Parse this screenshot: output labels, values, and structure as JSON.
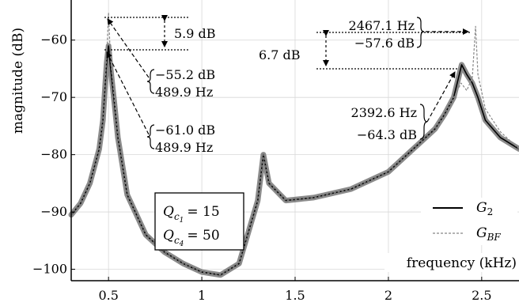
{
  "chart_data": {
    "type": "line",
    "xlabel": "frequency (kHz)",
    "ylabel": "magnitude (dB)",
    "xlim": [
      0.3,
      2.7
    ],
    "ylim": [
      -102,
      -53
    ],
    "x_ticks": [
      0.5,
      1,
      1.5,
      2,
      2.5
    ],
    "x_tick_labels": [
      "0.5",
      "1",
      "1.5",
      "2",
      "2.5"
    ],
    "y_ticks": [
      -60,
      -70,
      -80,
      -90,
      -100
    ],
    "y_tick_labels": [
      "−60",
      "−70",
      "−80",
      "−90",
      "−100"
    ],
    "grid": true,
    "legend_position": "bottom-right",
    "series": [
      {
        "name": "G_BF",
        "legend_main": "G",
        "legend_sub": "BF",
        "color": "#888888",
        "dashed": true,
        "x": [
          0.3,
          0.35,
          0.4,
          0.45,
          0.47,
          0.48,
          0.49,
          0.5,
          0.51,
          0.53,
          0.55,
          0.6,
          0.7,
          0.8,
          0.9,
          1.0,
          1.1,
          1.2,
          1.3,
          1.33,
          1.36,
          1.45,
          1.6,
          1.8,
          2.0,
          2.1,
          2.2,
          2.25,
          2.3,
          2.35,
          2.39,
          2.42,
          2.45,
          2.4671,
          2.48,
          2.52,
          2.6,
          2.7
        ],
        "y": [
          -90.5,
          -88.5,
          -85,
          -79,
          -74,
          -69,
          -63,
          -55.2,
          -63,
          -70,
          -77,
          -87,
          -94,
          -97,
          -99,
          -100.5,
          -101,
          -99,
          -88,
          -80,
          -85,
          -88,
          -87.5,
          -86,
          -83,
          -80,
          -77,
          -75.5,
          -73,
          -70,
          -67.5,
          -68.8,
          -66.5,
          -57.6,
          -66,
          -72,
          -76,
          -79
        ]
      },
      {
        "name": "G_2",
        "legend_main": "G",
        "legend_sub": "2",
        "color": "#000000",
        "dashed": false,
        "x": [
          0.3,
          0.35,
          0.4,
          0.45,
          0.47,
          0.48,
          0.49,
          0.5,
          0.51,
          0.53,
          0.55,
          0.6,
          0.7,
          0.8,
          0.9,
          1.0,
          1.1,
          1.2,
          1.3,
          1.33,
          1.36,
          1.45,
          1.6,
          1.8,
          2.0,
          2.1,
          2.2,
          2.25,
          2.3,
          2.35,
          2.3926,
          2.42,
          2.45,
          2.48,
          2.52,
          2.6,
          2.7
        ],
        "y": [
          -90.5,
          -88.5,
          -85,
          -79,
          -74,
          -69,
          -64,
          -61.0,
          -64.5,
          -70.5,
          -77,
          -87,
          -94,
          -97,
          -99,
          -100.5,
          -101,
          -99,
          -88,
          -80,
          -85,
          -88,
          -87.5,
          -86,
          -83,
          -80,
          -77,
          -75.5,
          -73,
          -70,
          -64.3,
          -66,
          -67.5,
          -70,
          -74,
          -77,
          -79
        ]
      }
    ],
    "annotations": {
      "diff_left": "5.9 dB",
      "diff_right": "6.7 dB",
      "peak_bf_left_db": "−55.2 dB",
      "peak_bf_left_hz": "489.9 Hz",
      "peak_g2_left_db": "−61.0 dB",
      "peak_g2_left_hz": "489.9 Hz",
      "peak_bf_right_hz": "2467.1 Hz",
      "peak_bf_right_db": "−57.6 dB",
      "peak_g2_right_hz": "2392.6 Hz",
      "peak_g2_right_db": "−64.3 dB"
    },
    "parameters": [
      {
        "symbol": "Q",
        "sub": "c",
        "subsub": "1",
        "value": "= 15"
      },
      {
        "symbol": "Q",
        "sub": "c",
        "subsub": "4",
        "value": "= 50"
      }
    ]
  }
}
